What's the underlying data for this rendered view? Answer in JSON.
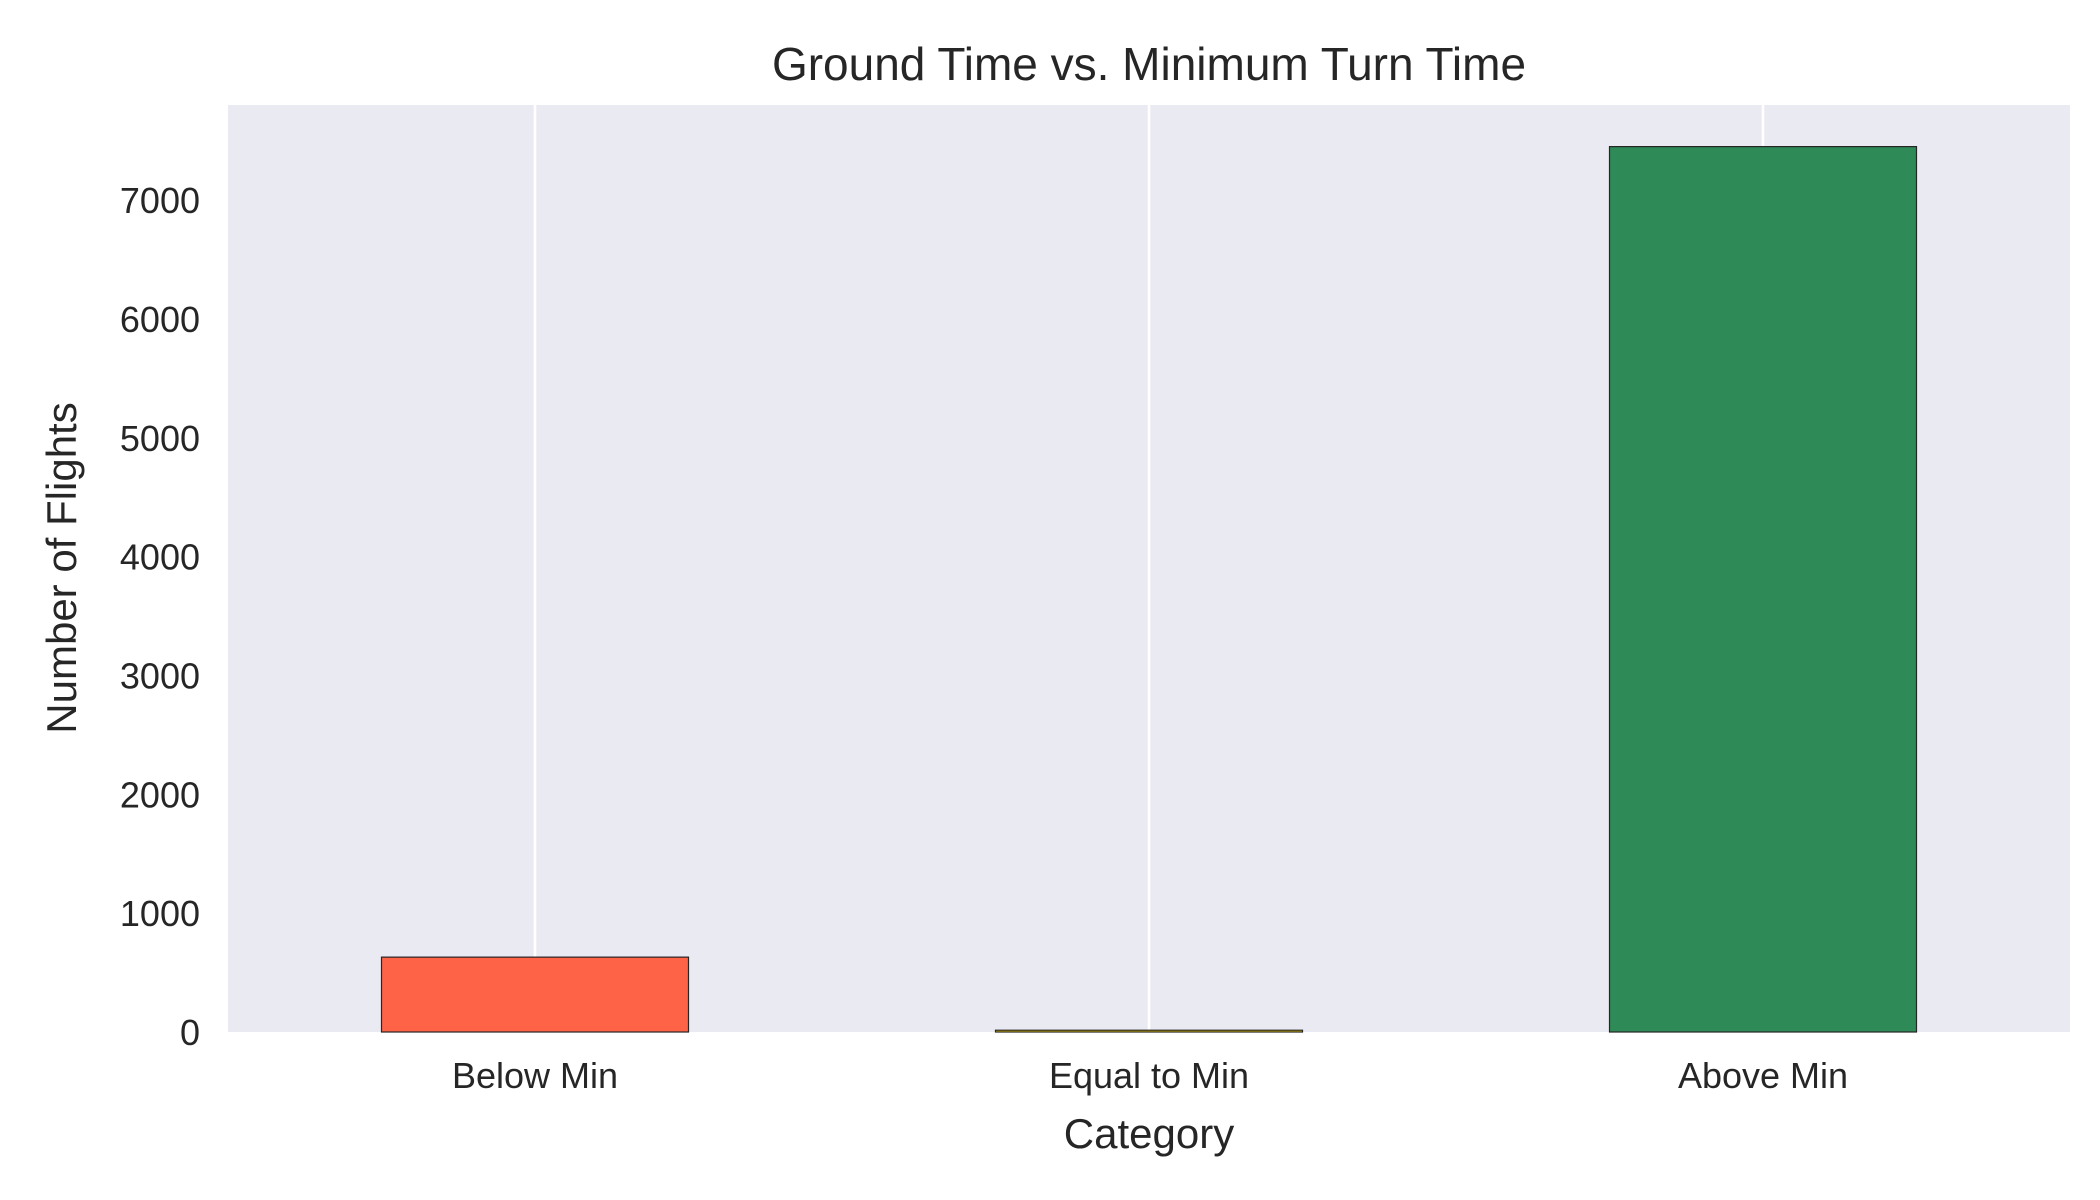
{
  "chart_data": {
    "type": "bar",
    "title": "Ground Time vs. Minimum Turn Time",
    "xlabel": "Category",
    "ylabel": "Number of Flights",
    "categories": [
      "Below Min",
      "Equal to Min",
      "Above Min"
    ],
    "values": [
      630,
      15,
      7450
    ],
    "colors": [
      "#ff6347",
      "#ffd700",
      "#2e8b57"
    ],
    "ylim": [
      0,
      7800
    ],
    "yticks": [
      0,
      1000,
      2000,
      3000,
      4000,
      5000,
      6000,
      7000
    ],
    "grid": "vertical"
  },
  "colors": {
    "plot_background": "#eaeaf2",
    "grid": "#ffffff",
    "bar_edge": "#262626"
  }
}
